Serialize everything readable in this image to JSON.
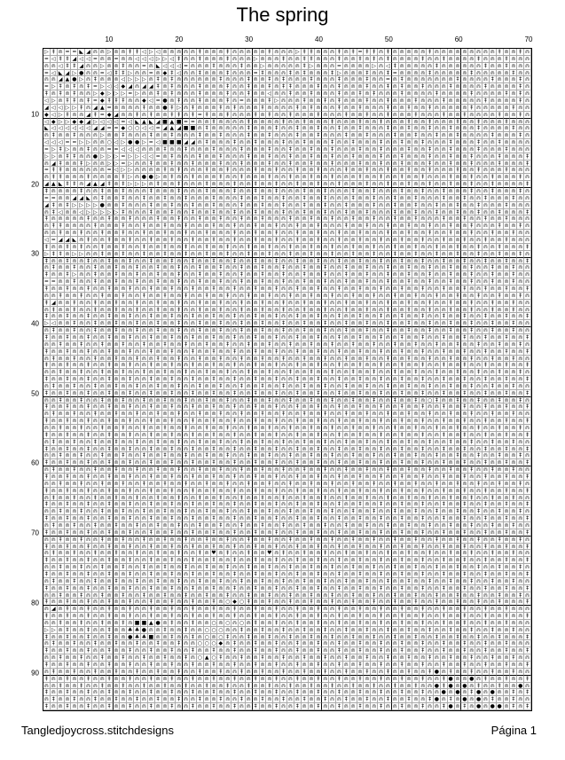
{
  "title": "The spring",
  "column_labels": [
    "10",
    "20",
    "30",
    "40",
    "50",
    "60",
    "70"
  ],
  "row_labels": [
    "10",
    "20",
    "30",
    "40",
    "50",
    "60",
    "70",
    "80",
    "90"
  ],
  "grid": {
    "columns": 70,
    "rows": 95,
    "symbol_key": {
      "a": "⋒",
      "i": "‡",
      "d": "●",
      "t": "▷",
      "m": "=",
      "l": "◁",
      "b": "◢",
      "s": "◣",
      "h": "♥",
      "o": "○",
      "p": "■",
      "q": "▲",
      "u": "▼",
      "k": "♣",
      "x": "◆"
    },
    "pattern": [
      "tiammsbaataaiiltlaaaaaiaaaiaaaaaiaaatiiaaaiaimiiaiaaaaaiaaaaaaaaaiaaia",
      "mliibllmaamaalllttliaaiaaaiaaataaaiaaiiaaaiaaiaiaiaaaaiaaiaaaaiaaaiaaa",
      "aaliibaataaiaamaslllmaaaiaaaiaataaaaaitaaamaaaataliaaaaaiaaaaaaiaaiaaa",
      "mlsbtdaamliitaamaxilaaiaaaiaaamiaaaiaiaaaitaaaiaaimaaaaiaaaaaiaaaaaiaa",
      "aabqdtaiaaaltttaiaiaaaaaaiaaaiaaiaiaaaiaaaiaaaiaamaiaaaaaaaiaaaaiaaaia",
      "mtiaiaimtllxbabbiaiaaaiaaaiaaiaaiaiiaaaiaaiaaaiaaiaiaaiaaaiaaaaiaaaaia",
      "iaiaiaatxtttmtaaiaiaaaiaaaiaaiaalaaiaaiaaaiaaiaiaaaiaaaaiaaaaiaaaaiaia",
      "ltaiiaimxiiiaaxlmdaiaaiaaaiamaaaitaaaiaaiaiaaaiaaiaaaiaaaiaaaaaiaaaaia",
      "bllttiabqmaaaaiaaditaiaaaiaiaaaiaaaaiaiaaaiaaiaaaiaaiaaiaaaaaiaaaaaiaa",
      "xltiaabimxbaaiaiaaiiaimiaaiaaaiaiaaiaaaiaaaiaaiaaiaaaiaaaiaaiaaaaiaaia",
      "lxttxxbtlllmlsqsbpqpmmaaiaaaaiaaaaiaaiaaaiaaaiaaiaaaiaaiaaaiaaiaaaiaaa",
      "sllllllbbmmxoollmbqbppaiaaaaaiaaaiaaiaaiaaiaaiaaaiaaiaaiaaiaaaiaaaaiaa",
      "aiaaiaaataaiaaaiaaiaaaiaaiaaaiaaiaaaiaaiaaaiaaiaaaiaaiaaiaaiaaaaiaaaia",
      "lllmmttaaoltddtmlpppbbaiaaaiaaiaaaiaaiaaaiaaiaaaiaaiaaiaaaiaaaiaaiaaaa",
      "mtitaaiaammlllaaaiaaiaaaiaaaiaaaiaaiaaiaaiaaaiaaiaaaiaaiaaiaaaiaaaiaaa",
      "ttaiiaadtttmttllmaiaaaiaaiaaaiaaiaaiaaiaaiaaiaaaiaaiaaaiaaiaaiaaaiaaai",
      "abiaaitaattmtaaiaaiaaiaaaiaaiaaaiaaiaaiaaiaaaiaaiaaiaaaiaaiaaiaaaiaaai",
      "miiaaaaaamlttaaaaiaiaaaiaaiaaaiaaiaaiaaiaaaiaaiaaiaaiaaiaaaiaaiaaaiaaa",
      "aiiaaaiaaaaitaddtaiaaiaaaiaaiaaaiaaiaaiaaiaaaiaaiaaiaaiaaaiaaiaaiaaaia",
      "bqsiiabqbiaitttaiaaiaaaiaaaiaaiaaiaaiaaiaaiaaaiaaiaaiaaiaaiaaiaaiaaaai",
      "iaaaaiaaiaaiaaaiaaaiaaaiaaaiaaiaaiaaaiaaiaaaiaaiaaaiaaiaaiaaaiaaiaaaia",
      "mmaabbsaiaaiaaiaaiaaiaaaiaaaiaaiaaiaaiaaiaaaiaaiaaiaaiaaaiaaiaaiaaaiaa",
      "biaittttdaaiaaaiaaiaaiaaiaaaiaaiaaiaaiaaiaaiaaaiaaiaaiaaiaaiaaiaaaiaaa",
      "ailaaltttttiaaaiaaiaaiaaiaaiaaiaaaiaaiaaiaaiaaiaaaiaaiaaiaaiaaiaaiaaai",
      "iaaaaaiaaiaaiaaaiaaiaaiaaiaaiaaiaaaiaaiaaiaaiaaiaaiaaiaaaiaaiaaiaaiaaa",
      "aiiaaaaiaaaiaaiaaiaaiaaaiaaiaaiaaiaaiaaiaaaiaaiaaiaaiaaiaaiaaiaaaiaaia",
      "aaiaaiaaiaaiaaiaaiaaiaaiaaaiaaiaaiaaiaaiaaiaaiaaaiaaiaaiaaiaaiaaiaaiaa",
      "lmbbsaiaaiaaiaaiaaiaaiaaiaaiaaiaaiaaiaaiaaiaaiaaiaaiaaiaaiaaiaaiaaiaaa",
      "iaaiaiaaiaaiaaiaaiaaiaaiaaiaaiaaiaaiaaiaaiaaiaaiaaiaaiaaiaaiaaiaaiaaai",
      "tiiattaaiaaiaaiaaiaaiaaiaaiaaiaaiaaiaaiaaiaaiaaiaaiaaiaaiaaiaaiaaiaaia",
      "iaaiaaiaaiaaiaaiaaiaaiaaiaaiaaiaaiaaiaaiaaiaaiaaiaaiaaiaaiaaiaaiaaiaai",
      "aiaaiaaiaaiaaiaaiaaiaaiaaiaaiaaiaaiaaiaaiaaiaaiaaiaaiaaiaaiaaiaaiaaiaa",
      "iaaitaaiaaiaaiaaiaaiaaiaaiaaiaaiaaiaaiaaiaaiaaiaaiaaiaaiaaiaaiaaiaaiaa",
      "mmaaiaaiaaiaaiaaiaaiaaiaaiaaiaaiaaiaaiaaiaaiaaiaaiaaiaaiaaiaaiaaiaaiaa",
      "iaaiaaiaaiaaiaaiaaiaaiaaiaaiaaiaaiaaiaaiaaiaaiaaiaaiaaiaaiaaiaaiaaiaai",
      "aaiaaiaaiaaiaaiaaiaaiaaiaaiaaiaaiaaiaaiaaiaaiaaiaaiaaiaaiaaiaaiaaiaaia",
      "ibaaiaaiaaiaaiaaiaaiaaiaaiaaiaaiaaiaaiaaiaaiaaiaaiaaiaaiaaiaaiaaiaaiaa",
      "aiaaiaaiaaiaaiaaiaaiaaiaaiaaiaaiaaiaaiaaiaaiaaiaaiaaiaaiaaiaaiaaiaaiaa",
      "iaaiaaiaaiaaiaaiaaiaaiaaiaaiaaiaaiaaiaaiaaiaaiaaiaaiaaiaaiaaiaaiaaiaai",
      "tlaaiaaiaaiaaiaaiaaiaaiaaiaaiaaiaaiaaiaaiaaiaaiaaiaaiaaiaaiaaiaaiaaiaa",
      "aiaaiaaiaaiaaiaaiaaiaaiaaiaaiaaiaaiaaiaaiaaiaaiaaiaaiaaiaaiaaiaaiaaiaa",
      "iaaiaaiaaiaaiaaiaaiaaiaaiaaiaaiaaiaaiaaiaaiaaiaaiaaiaaiaaiaaiaaiaaiaai",
      "aaiaaiaaiaaiaaiaaiaaiaaiaaiaaiaaiaaiaaiaaiaaiaaiaaiaaiaaiaaiaaiaaiaaia",
      "iaaiaaiaaiaaiaaiaaiaaiaaiaaiaaiaaiaaiaaiaaiaaiaaiaaiaaiaaiaaiaaiaaiaai",
      "aiaaiaaiaaiaaiaaiaaiaaiaaiaaiaaiaaiaaiaaiaaiaaiaaiaaiaaiaaiaaiaaiaaiaa",
      "iaaiaaiaaiaaiaaiaaiaaiaaiaaiaaiaaiaaiaaiaaiaaiaaiaaiaaiaaiaaiaaiaaiaai",
      "aaiaaiaaiaaiaaiaaiaaiaaiaaiaaiaaiaaiaaiaaiaaiaaiaaiaaiaaiaaiaaiaaiaaia",
      "iaaiaaiaaiaaiaaiaaiaaiaaiaaiaaiaaiaaiaaiaaiaaiaaiaaiaaiaaiaaiaaiaaiaai",
      "aiaaiaaiaaiaaiaaiaaiaaiaaiaaiaaiaaiaaiaaiaaiaaiaaiaaiaaiaaiaaiaaiaaiaa",
      "iaaiaaiaaiaaiaaiaaiaaiaaiaaiaaiaaiaaiaaiaaiaaiaaiaaiaaiaaiaaiaaiaaiaai",
      "aaiaaiaaiaaiaaiaaiaaiaaiaaiaaiaaiaaiaaiaaiaaiaaiaaiaaiaoiaaiaaiaaiaaia",
      "iaaiaaiaaiaaiaaiaaiaaiaaiaaiaaiaaiaaiaaiaaiaaiaaiaaiaaiaaiaaiaaiaaiaai",
      "aiaaiaaiaaiaaiaaiaaiaaiaaiaaiaaiaaiaaiaaiaaiaaiaaiaaiaaiaaiaaiaaiaaiaa",
      "iaaiaaiaaiaaiaaiaaiaaiaaiaaiaaiaaiaaiaaiaaiaaiaaiaaiaaiaaiaaiaaiaaiaai",
      "aaiaaiaaiaaiaaiaaiaaiaaiaaiaaiaaiaaiaaiaaiaaiaaiaaiaaiaaiaaiaaiaaiaaia",
      "iaaiaaiaaiaaiaaiaaiaaiaaiaaiaaiaaiaaiaaiaaiaaiaaiaaiaaiaaiaaiaaiaaiaai",
      "aiaaiaaiaaiaaiaaiaaiaaiaaiaaiaaiaaiaaiaaiaaiaaiaaiaaiaaiaaiaaiaaiaaiaa",
      "iaaiaaiaaiaaiaaiaaiaaiaaiaaiaaiaaiaaiaaiaaiaaiaaiaaiaaiaaiaaiaaiaaiaai",
      "aaiaaiaaiaaiaaiaaiaaiaaiaaiaaiaaiaaiaaiaaiaaiaaiaaiaaiaaiaaiaaiaaiaaia",
      "iaaiaaiaaiaaiaaiaaiaaiaaiaaiaaiaaiaaiaaiaaiaaiaaiaaiaaiaaiaaiaaiaaiaai",
      "aiaaiaaiaaiaaiaaiaaiaaiaaiaaiaaiaaiaaiaaiaaiaaiaaiaaiaaiaaiaaiaaiaaiaa",
      "iaaiaaiaaiaaiaaiaaiaaiaaiaaiaaiaaiaaiaaiaaiaaiaaiaaiaaiaaiaaiaaiaaiaai",
      "aaiaaiaaiaaiaaiaaiaaiaaiaaiaaiaaiaaiaaiaaiaaiaaiaaiaaiaaiaaiaaiaaiaaia",
      "iaaiaaiaaiaaiaaiaaiaaiaaiaaiaaiaaiaaiaaiaaiaaiaaiaaiaaiaaiaaiaaiaaiaai",
      "aiaaiaaiaaiaaiaaiaaiaaiaaiaaiaaiaaiaaiaaiaaiaaiaaiaaiaaiaaiaaiaaiaaiaa",
      "iaaiaaiaaiaaiaaiaaiaaiaaiaaiaaiaaiaaiaaiaaiaaiaaiaaiaaiaaiaaiaaiaaiaai",
      "aaiaaiaaiaaiaaiaaiaaiaaiaaiaaiaaiaaiaaiaaiaaiaaiaaiaaiaaiaaiaaiaaiaaia",
      "iaaiaaiaaiaaiaaiaaiaaiaaiaaiaaiaaiaaiaaiaaiaaiaaiaaiaaiaaiaaiaaiaaiaai",
      "aiaaiaaiaaiaaiaaiaaiaaiaaiaaiaaiaaiaaiaaiaaiaaiaaiaaiaaiaaiaaiaaiaaiaa",
      "iaaiaaiaaiaaiaaiaaiaaiaaiaaiaaiaaiaaiaaiaaiaaiaaiaaiaaiaaiaaiaaiaaiaai",
      "aaiaaiaaiaaiaaiaaiaaiaaiaaiaaiaaiaaiaaiaaiaaiaaiaaiaaiaaiaaiaaiaaiaaia",
      "iaaiaaiaaiaaiaaiaaiaaiaaiaaiaaiaaiaaiaaiaaiaaiaaiaaiaaiaaiaaiaaiaaiaai",
      "aiaaiaaiaaiaaiaaiaaiaaiahaiaaiaahaiaaiaaiaaiaaiaaiaaiaaiaaiaaiaaiaaiaa",
      "iaaiaaiaaiaaiaaiaaiaaiaaiaaiaaiaaiaaiaaiaaiaaiaaiaaiaaiaaiaaiaaiaaiaai",
      "aaiaaiaaiaaiaaiaaiaaiaaiaaiaaiaaiaaiaaiaaiaaiaaiaaiaaiaaiaaiaaiaaiaaia",
      "iaaiaaiaaiaaiaaiaaiaaiaaiaaiaaiaaiaaiaaiaaiaaiaaiaaiaaiaaiaaiaaiaaiaai",
      "aiaaiaaiaaiaaiaaiaaiaaiaaiaaiaaiaaiaaiaaiaaiaaiaaiaaiaaiaaiaaiaaiaaiaa",
      "iaaiaaiaaiaaiaaiaaiaaiaaiaaiaaiaaiaaiaaiaaiaaiaaiaaiaaiaaiaaiaaiaaiaai",
      "aaiaaiaaiaaiaaiaaiaaiaaiaaiaaiaaiaaiaaiaaiaaiaaiaaiaaiaaiaaiaaiaaiaaia",
      "iaaiaaiaaiaaiaaiaaiaaiaaiaoxoiaaiaaiaaiaaiaaiaaiaaiaaiaaiaaiaaiaaiaaai",
      "abaiaaiaaiaaiaaiaaiaaiaaiaaiaaiaaiaaiaaiaaiaaiaaiaaiaaiaaiaaiaaiaaiaaa",
      "iaaiaaiaaiaaiaaiaaiaaiaaiaaiaaiaaiaaiaaiaaiaaiaaiaaiaaiaaiaaiaaiaaiaai",
      "aaiaaiaaiaaiappqdaiaaiaaoaoaoaiaaiaaiaaiaaiaaiaaiaaiaaiaaiaaiaaiaaiaaa",
      "ttaiaaiaaiaakkdaaiaaiaaoooaaiaaiaaiaaiaaiaaiaaiaaiaaiaaiaaiaaiaaiaaiaa",
      "iaaiaaiaaiaadkkpaaiaaiaoaoiaaiaaiaaiaaiaaiaaiaaiaaiaaiaaiaaiaaiaaiaaai",
      "aiaaiaaiaaiaaiaaiaaiaaoooxaiaaiaaiaaiaaiaaiaaiaaiaaiaaiaaiaaiaaiaaiaaa",
      "iaaiaaiaaiaaiaaiaaiaaiaaiaaiaaiaaiaaiaaiaaiaaiaaiaaiaaiaaiaaiaaiaaiaai",
      "aaiaaiaaiaaiaaiaaiaaiaoqoiaaiaaiaaiaaiaaiaaiaaiaaiaaiaaiaaiaaiaaiaaiaa",
      "iaaiaaiaaiaaiaaiaaiaaiaaiaaiaaiaaiaaiaaiaaiaaiaaiaaiaaiaaiaaiaaiaaiaai",
      "aiaaiaaiaaiaaiaaiaaiaaiaaiaaiaaiaaiaaiaaiaaiaaiaaiaaiaaidaiaaiaaiaaiaa",
      "iaaiaaiaaiaaiaaiaaiaaiaaiaaiaaiaaiaaiaaiaaiaaiaaiaaiaaiaaidaadaiaaiaai",
      "aaiaaiaaiaaiaaiaaiaaiaaiaaiaaiaaiaaiaaiaaiaaiaaiaaiaaiaadidadaiaaiaada",
      "iaaiaaiaaiaaiaaiaaiaaiaaiaaiaaiaaiaaiaaiaaiaaiaaiaaiaaiaadadaidadaaiai",
      "aiaaiaaiaaiaaiaaiaaiaaiaaiaaiaaiaaiaaiaaiaaiaaiaaiaaiaaidaiadadaiaaiaa",
      "iaaiaaiaaiaaiaaiaaiaaiaaiaaiaaiaaiaaiaaiaaiaaiaaiaaiaaiaaidaiadaddaiai"
    ]
  },
  "footer": {
    "left": "Tangledjoycross.stitchdesigns",
    "right": "Página 1"
  }
}
